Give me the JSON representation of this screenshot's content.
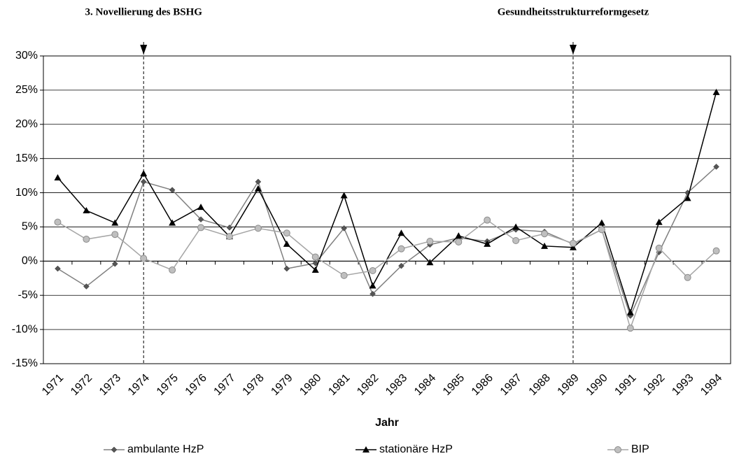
{
  "chart_data": {
    "type": "line",
    "x_label": "Jahr",
    "categories": [
      "1971",
      "1972",
      "1973",
      "1974",
      "1975",
      "1976",
      "1977",
      "1978",
      "1979",
      "1980",
      "1981",
      "1982",
      "1983",
      "1984",
      "1985",
      "1986",
      "1987",
      "1988",
      "1989",
      "1990",
      "1991",
      "1992",
      "1993",
      "1994"
    ],
    "series": [
      {
        "name": "ambulante HzP",
        "color": "#808080",
        "marker": "diamond",
        "marker_color": "#555555",
        "values": [
          -1.1,
          -3.7,
          -0.4,
          11.6,
          10.4,
          6.1,
          4.9,
          11.6,
          -1.1,
          -0.3,
          4.8,
          -4.8,
          -0.7,
          2.4,
          3.4,
          2.9,
          4.6,
          4.3,
          2.5,
          4.6,
          -8.0,
          1.3,
          10.0,
          13.8
        ]
      },
      {
        "name": "stationäre HzP",
        "color": "#000000",
        "marker": "triangle",
        "marker_color": "#000000",
        "values": [
          12.2,
          7.4,
          5.6,
          12.8,
          5.6,
          7.9,
          3.6,
          10.6,
          2.5,
          -1.3,
          9.6,
          -3.6,
          4.1,
          -0.2,
          3.7,
          2.5,
          5.0,
          2.2,
          2.0,
          5.6,
          -7.5,
          5.7,
          9.2,
          24.7
        ]
      },
      {
        "name": "BIP",
        "color": "#a6a6a6",
        "marker": "circle",
        "marker_color": "#bfbfbf",
        "values": [
          5.7,
          3.2,
          3.9,
          0.4,
          -1.3,
          4.9,
          3.6,
          4.8,
          4.1,
          0.6,
          -2.1,
          -1.4,
          1.8,
          2.9,
          2.8,
          6.0,
          3.0,
          4.0,
          2.6,
          4.6,
          -9.8,
          1.9,
          -2.4,
          1.5
        ]
      }
    ],
    "ylim": [
      -15,
      30
    ],
    "yticks": [
      {
        "value": -15,
        "label": "-15%"
      },
      {
        "value": -10,
        "label": "-10%"
      },
      {
        "value": -5,
        "label": "-5%"
      },
      {
        "value": 0,
        "label": "0%"
      },
      {
        "value": 5,
        "label": "5%"
      },
      {
        "value": 10,
        "label": "10%"
      },
      {
        "value": 15,
        "label": "15%"
      },
      {
        "value": 20,
        "label": "20%"
      },
      {
        "value": 25,
        "label": "25%"
      },
      {
        "value": 30,
        "label": "30%"
      }
    ],
    "grid": true,
    "legend": "bottom",
    "annotations": [
      {
        "text": "3. Novellierung des BSHG",
        "x": "1974"
      },
      {
        "text": "Gesundheitsstrukturreformgesetz",
        "x": "1989"
      }
    ]
  }
}
